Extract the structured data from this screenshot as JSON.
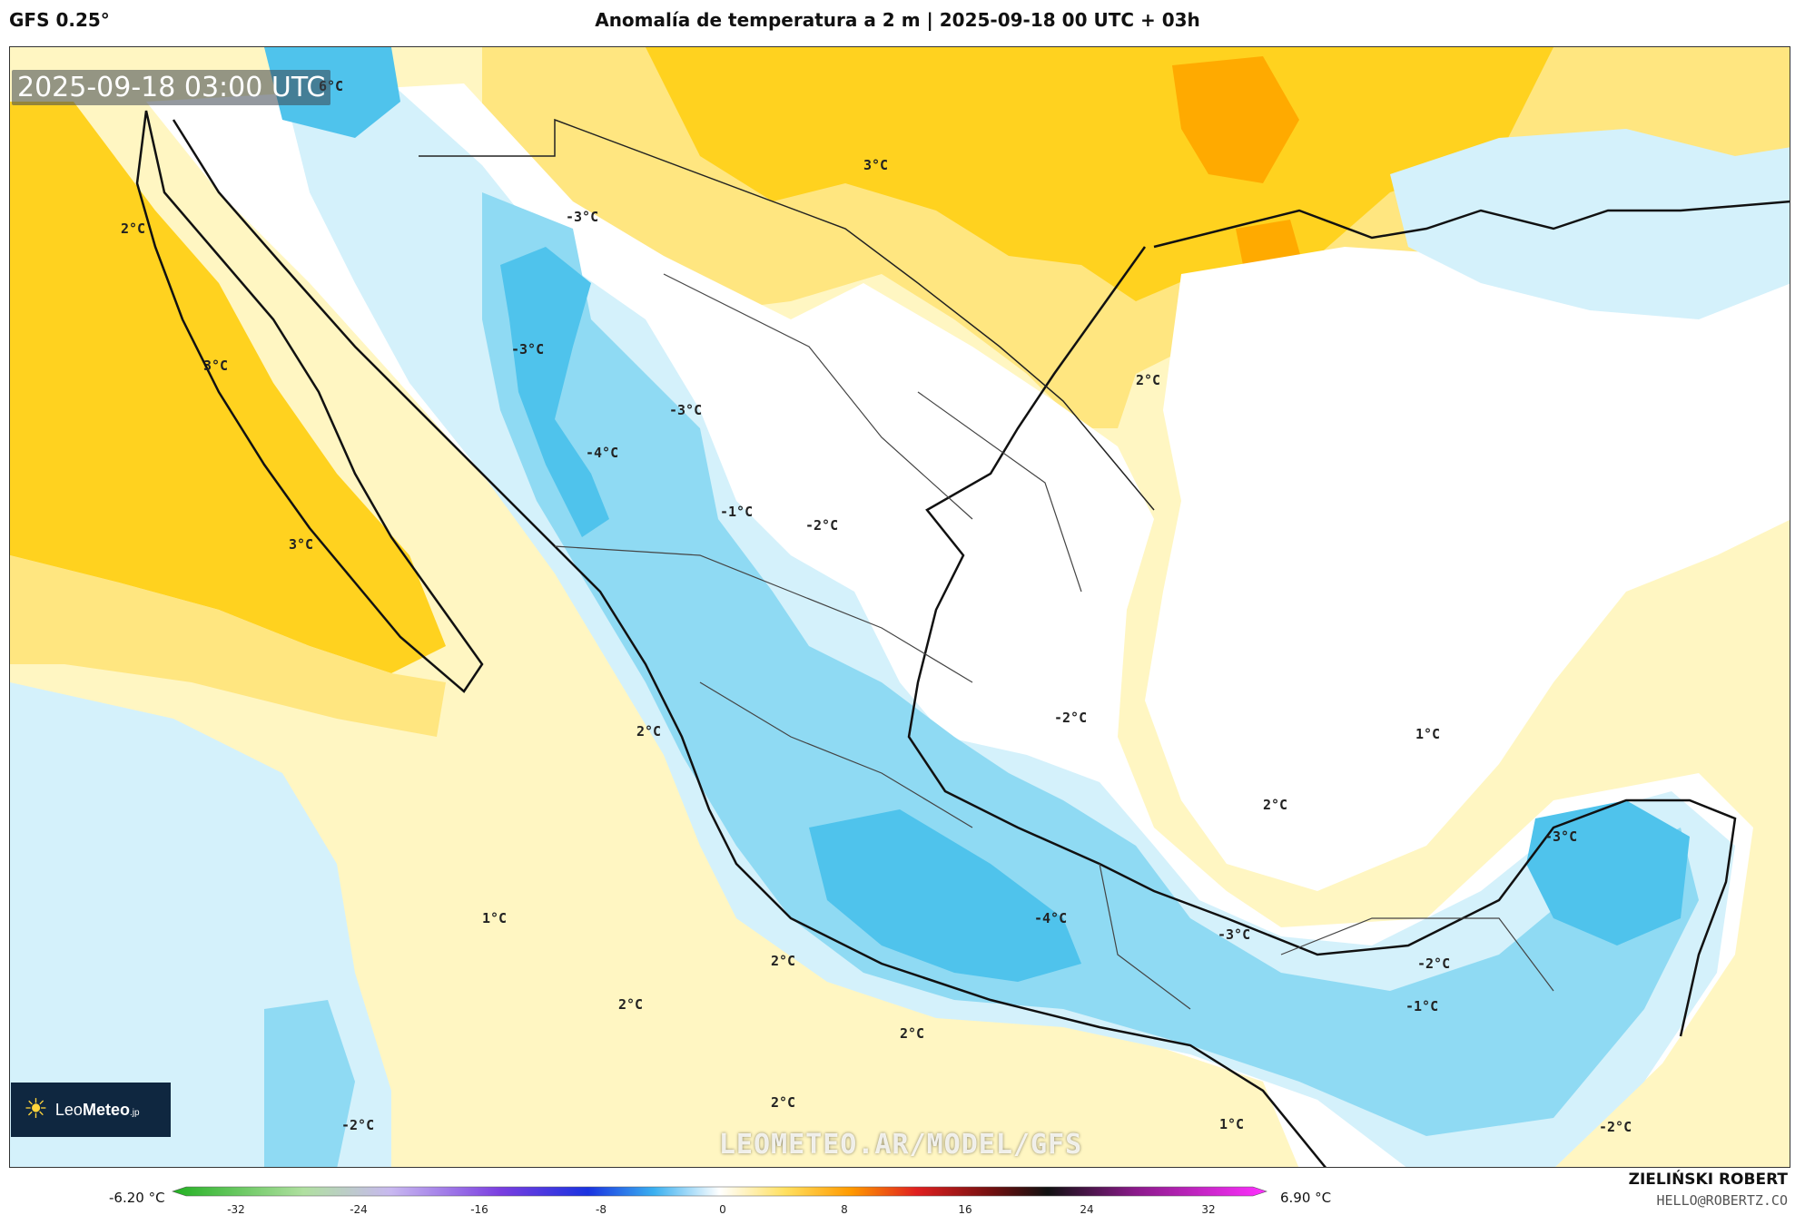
{
  "header": {
    "model": "GFS 0.25°",
    "title": "Anomalía de temperatura a 2 m | 2025-09-18 00 UTC + 03h"
  },
  "map": {
    "timestamp": "2025-09-18 03:00 UTC",
    "watermark": "LEOMETEO.AR/MODEL/GFS",
    "logo": {
      "prefix": "Leo",
      "suffix": "Meteo",
      "tld": ".jp"
    },
    "contour_labels": [
      "6°C",
      "3°C",
      "2°C",
      "-3°C",
      "-3°C",
      "-3°C",
      "-4°C",
      "-1°C",
      "-2°C",
      "3°C",
      "2°C",
      "3°C",
      "2°C",
      "-2°C",
      "1°C",
      "2°C",
      "-3°C",
      "1°C",
      "2°C",
      "2°C",
      "-4°C",
      "-3°C",
      "-2°C",
      "-1°C",
      "2°C",
      "-2°C",
      "2°C",
      "1°C",
      "-2°C"
    ],
    "colors": {
      "ocean_warm": "#fff6c2",
      "warm_1": "#ffe680",
      "warm_2": "#ffd21f",
      "warm_3": "#ffaa00",
      "cold_1": "#d4f1fb",
      "cold_2": "#8fdaf3",
      "cold_3": "#4fc3ec",
      "neutral": "#ffffff"
    }
  },
  "colorbar": {
    "min_label": "-6.20 °C",
    "max_label": "6.90 °C",
    "ticks": [
      "-32",
      "-24",
      "-16",
      "-8",
      "0",
      "8",
      "16",
      "24",
      "32"
    ]
  },
  "credit": {
    "name": "ZIELIŃSKI ROBERT",
    "email": "HELLO@ROBERTZ.CO"
  }
}
